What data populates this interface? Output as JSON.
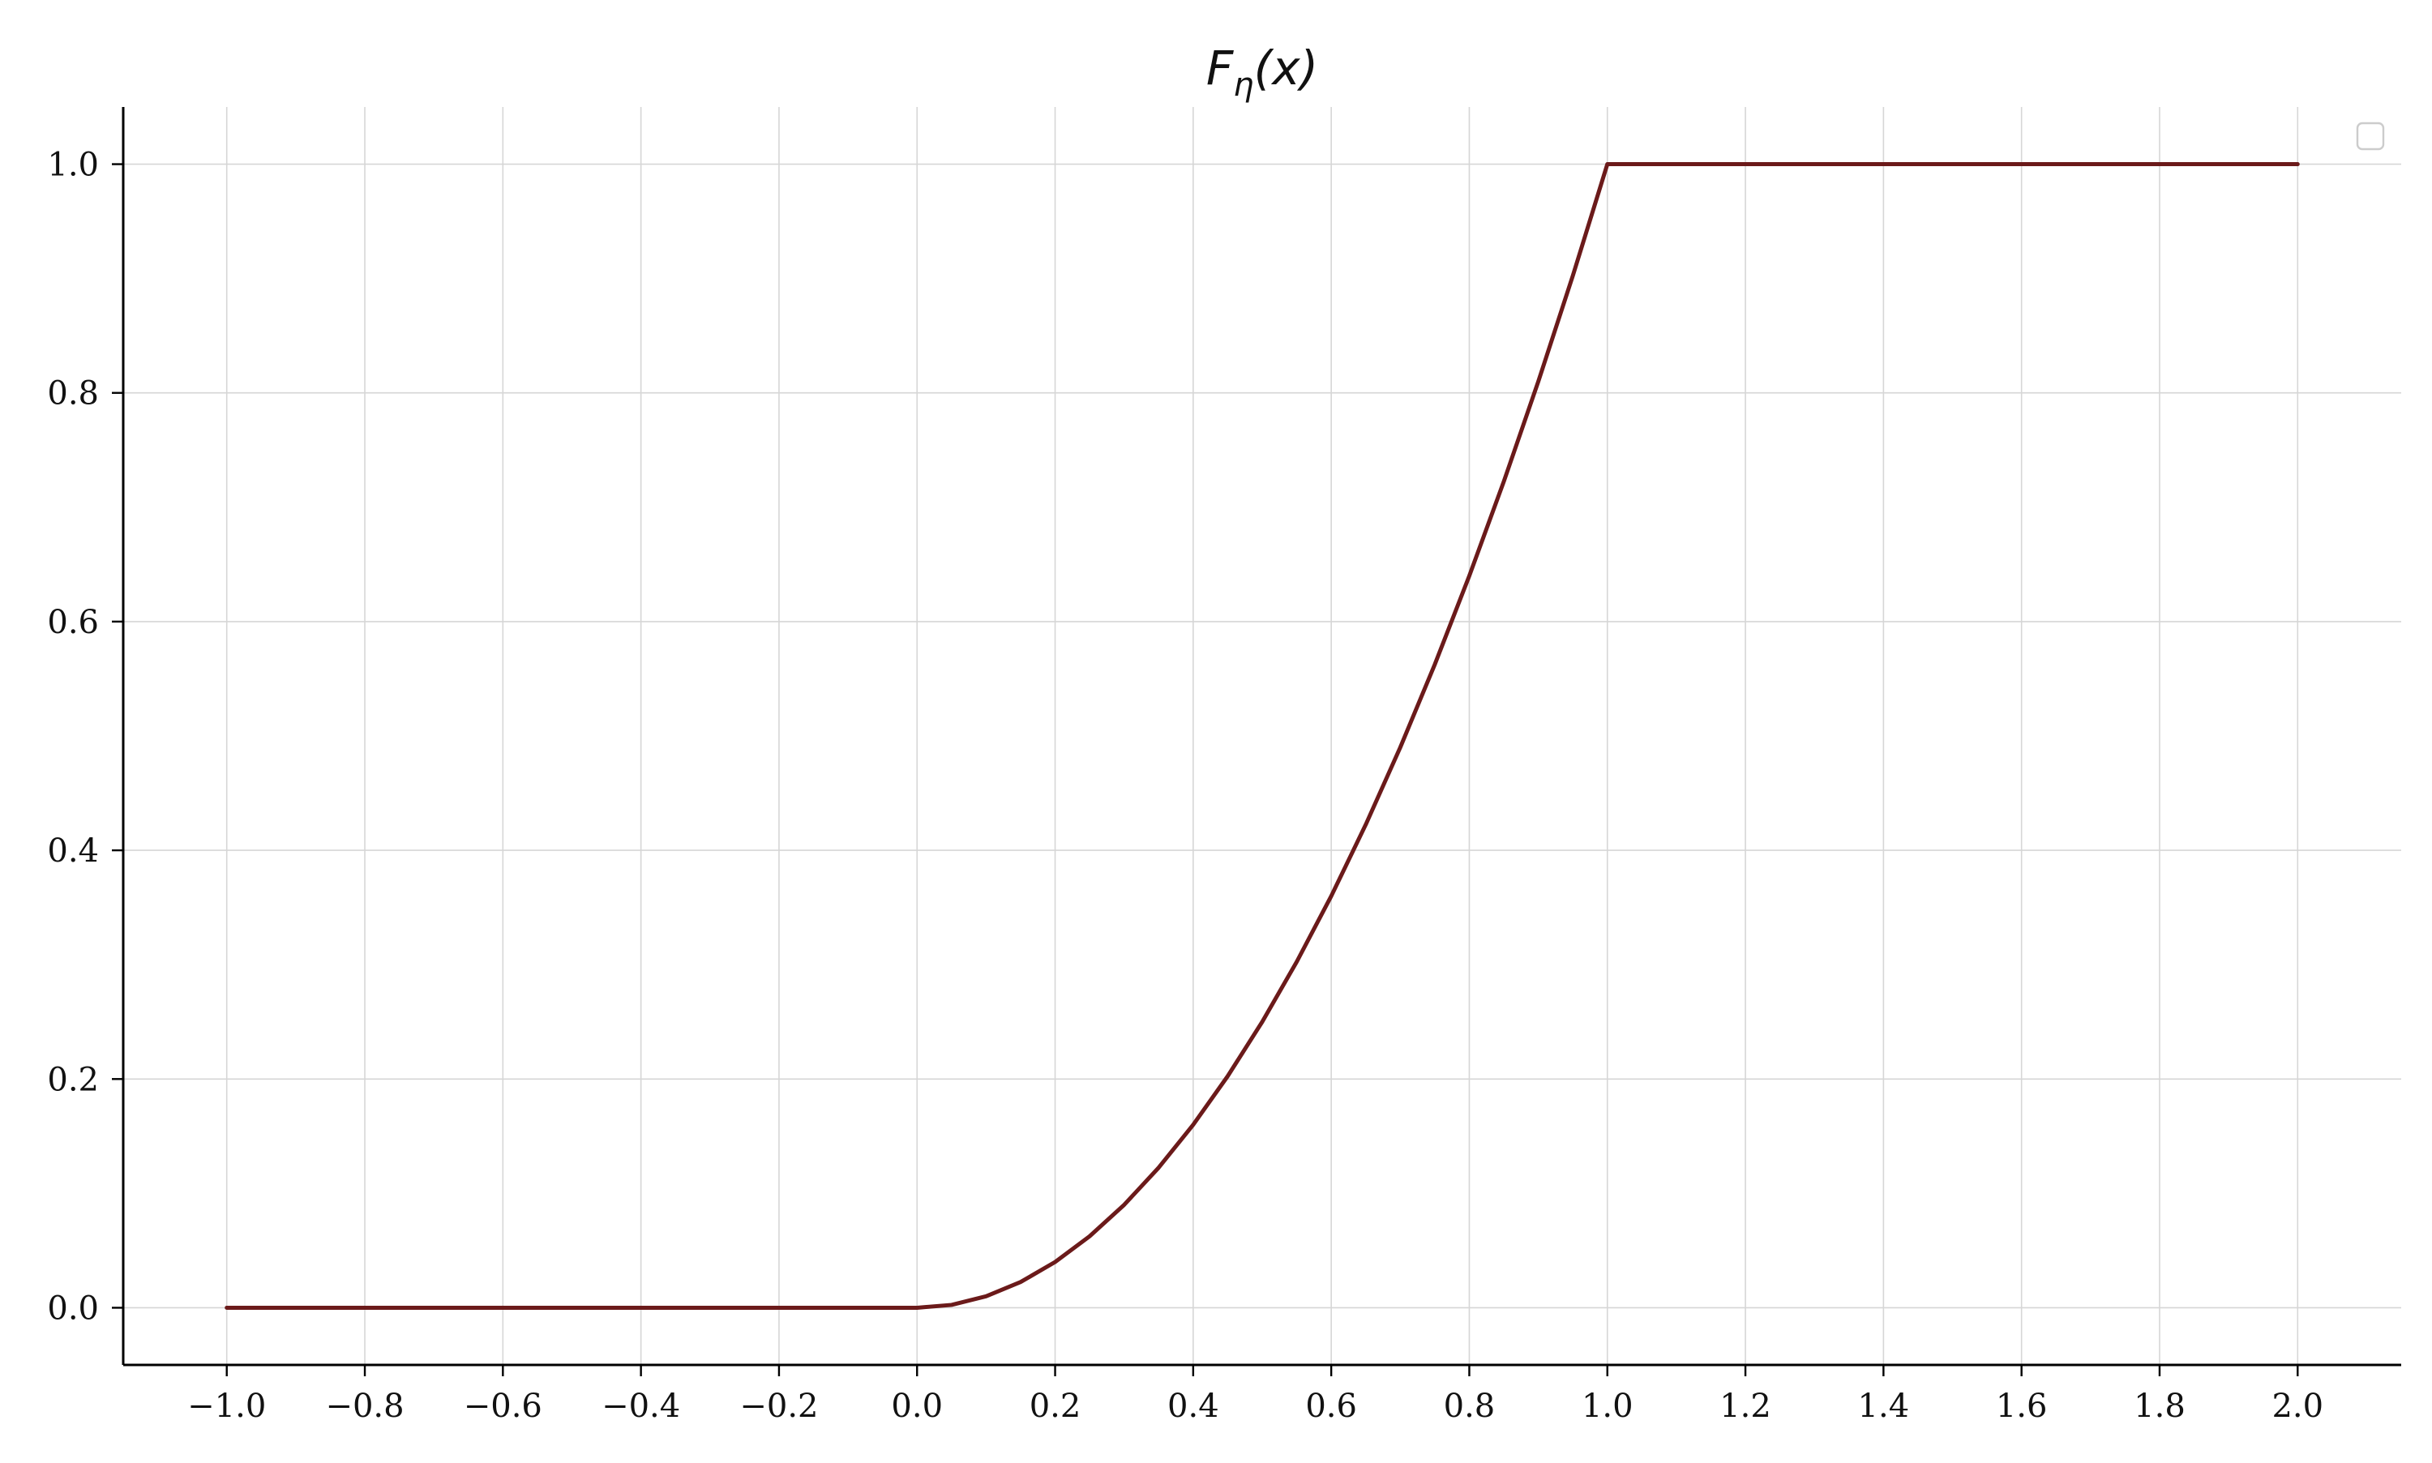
{
  "chart_data": {
    "type": "line",
    "title": "F_η(x)",
    "xlabel": "",
    "ylabel": "",
    "xlim": [
      -1.15,
      2.15
    ],
    "ylim": [
      -0.05,
      1.05
    ],
    "x_ticks": [
      -1.0,
      -0.8,
      -0.6,
      -0.4,
      -0.2,
      0.0,
      0.2,
      0.4,
      0.6,
      0.8,
      1.0,
      1.2,
      1.4,
      1.6,
      1.8,
      2.0
    ],
    "x_tick_labels": [
      "−1.0",
      "−0.8",
      "−0.6",
      "−0.4",
      "−0.2",
      "0.0",
      "0.2",
      "0.4",
      "0.6",
      "0.8",
      "1.0",
      "1.2",
      "1.4",
      "1.6",
      "1.8",
      "2.0"
    ],
    "y_ticks": [
      0.0,
      0.2,
      0.4,
      0.6,
      0.8,
      1.0
    ],
    "y_tick_labels": [
      "0.0",
      "0.2",
      "0.4",
      "0.6",
      "0.8",
      "1.0"
    ],
    "grid": true,
    "legend": "top-right (empty)",
    "series": [
      {
        "color": "#6b1a1a",
        "x": [
          -1.0,
          -0.8,
          -0.6,
          -0.4,
          -0.2,
          0.0,
          0.05,
          0.1,
          0.15,
          0.2,
          0.25,
          0.3,
          0.35,
          0.4,
          0.45,
          0.5,
          0.55,
          0.6,
          0.65,
          0.7,
          0.75,
          0.8,
          0.85,
          0.9,
          0.95,
          1.0,
          1.2,
          1.4,
          1.6,
          1.8,
          2.0
        ],
        "y": [
          0.0,
          0.0,
          0.0,
          0.0,
          0.0,
          0.0,
          0.0025,
          0.01,
          0.0225,
          0.04,
          0.0625,
          0.09,
          0.1225,
          0.16,
          0.2025,
          0.25,
          0.3025,
          0.36,
          0.4225,
          0.49,
          0.5625,
          0.64,
          0.7225,
          0.81,
          0.9025,
          1.0,
          1.0,
          1.0,
          1.0,
          1.0,
          1.0
        ]
      }
    ],
    "colors": {
      "line": "#6b1a1a",
      "grid": "#d6d6d6",
      "axis": "#000000",
      "legend_border": "#cccccc"
    }
  }
}
